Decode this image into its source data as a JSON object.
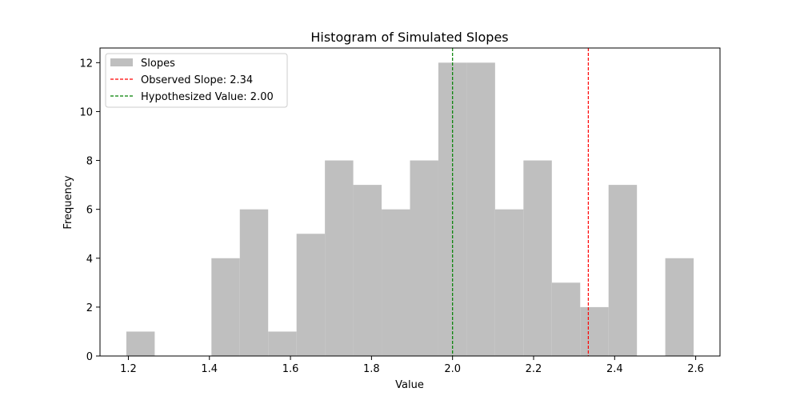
{
  "chart_data": {
    "type": "bar",
    "title": "Histogram of Simulated Slopes",
    "xlabel": "Value",
    "ylabel": "Frequency",
    "xlim": [
      1.13,
      2.66
    ],
    "ylim": [
      0,
      12.6
    ],
    "x_ticks": [
      1.2,
      1.4,
      1.6,
      1.8,
      2.0,
      2.2,
      2.4,
      2.6
    ],
    "x_tick_labels": [
      "1.2",
      "1.4",
      "1.6",
      "1.8",
      "2.0",
      "2.2",
      "2.4",
      "2.6"
    ],
    "y_ticks": [
      0,
      2,
      4,
      6,
      8,
      10,
      12
    ],
    "y_tick_labels": [
      "0",
      "2",
      "4",
      "6",
      "8",
      "10",
      "12"
    ],
    "series": [
      {
        "name": "Slopes",
        "color": "#bfbfbf",
        "bin_edges": [
          1.195,
          1.265,
          1.335,
          1.405,
          1.475,
          1.545,
          1.615,
          1.685,
          1.755,
          1.825,
          1.895,
          1.965,
          2.035,
          2.105,
          2.175,
          2.245,
          2.315,
          2.385,
          2.455,
          2.525,
          2.595
        ],
        "values": [
          1,
          0,
          0,
          4,
          6,
          1,
          5,
          8,
          7,
          6,
          8,
          12,
          12,
          6,
          8,
          3,
          2,
          7,
          0,
          4
        ]
      }
    ],
    "reference_lines": [
      {
        "name": "Observed Slope: 2.34",
        "x": 2.335,
        "color": "#ff0000",
        "style": "dashed"
      },
      {
        "name": "Hypothesized Value: 2.00",
        "x": 2.0,
        "color": "#008000",
        "style": "dashed"
      }
    ],
    "grid": false,
    "legend_position": "top-left"
  }
}
